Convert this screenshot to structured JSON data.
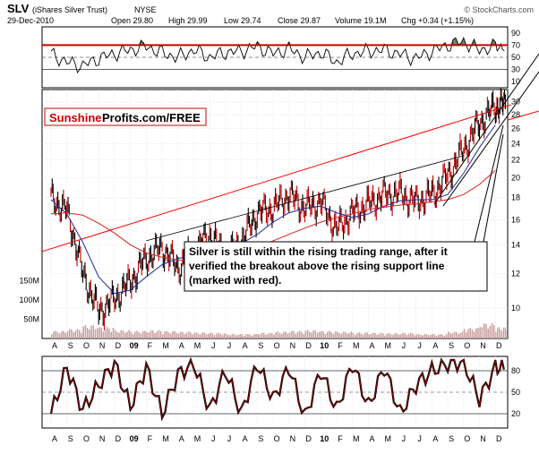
{
  "colors": {
    "price": "#000000",
    "ma50": "#1f2f9f",
    "ma200": "#d81f1f",
    "trendline": "#ff0000",
    "channel": "#000000",
    "rsi_line": "#000000",
    "rsi_overbought": "#cc0000",
    "rsi_fill": "#3c7a3c",
    "stoch_line": "#8b0000",
    "volume": "#c9a0a0",
    "grid": "#cccccc",
    "brand_red": "#cc0000"
  },
  "header": {
    "symbol": "SLV",
    "name": "(iShares Silver Trust)",
    "exchange": "NYSE",
    "copyright": "© StockCharts.com",
    "date": "29-Dec-2010",
    "open": "Open 29.80",
    "high": "High 29.99",
    "low": "Low 29.74",
    "close": "Close 29.87",
    "volume": "Volume 19.1M",
    "change": "Chg +0.34 (+1.15%)"
  },
  "watermark": {
    "part1": "Sunshine",
    "part2": "Profits.com/FREE"
  },
  "annotation": {
    "lines": [
      "Silver is still within the rising trading range, after it",
      "verified the breakout above the rising support line",
      "(marked with red)."
    ]
  },
  "chart_data": [
    {
      "type": "line",
      "panel": "rsi",
      "y_ticks": [
        "90",
        "70",
        "50",
        "30",
        "10"
      ],
      "ylim": [
        0,
        100
      ],
      "overbought": 70,
      "oversold": 30,
      "x": [
        "2008-08",
        "2008-09",
        "2008-10",
        "2008-11",
        "2008-12",
        "2009-01",
        "2009-02",
        "2009-03",
        "2009-04",
        "2009-05",
        "2009-06",
        "2009-07",
        "2009-08",
        "2009-09",
        "2009-10",
        "2009-11",
        "2009-12",
        "2010-01",
        "2010-02",
        "2010-03",
        "2010-04",
        "2010-05",
        "2010-06",
        "2010-07",
        "2010-08",
        "2010-09",
        "2010-10",
        "2010-11",
        "2010-12"
      ],
      "values": [
        55,
        42,
        36,
        48,
        56,
        62,
        68,
        57,
        50,
        62,
        50,
        58,
        60,
        68,
        56,
        64,
        50,
        58,
        42,
        56,
        60,
        62,
        55,
        48,
        60,
        70,
        76,
        62,
        68
      ]
    },
    {
      "type": "line",
      "panel": "price",
      "y_scale": "log",
      "y_ticks": [
        "30",
        "28",
        "26",
        "24",
        "22",
        "20",
        "18",
        "16",
        "14",
        "12",
        "10"
      ],
      "ylim": [
        8.5,
        32
      ],
      "x_labels": [
        "A",
        "S",
        "O",
        "N",
        "D",
        "09",
        "F",
        "M",
        "A",
        "M",
        "J",
        "J",
        "A",
        "S",
        "O",
        "N",
        "D",
        "10",
        "F",
        "M",
        "A",
        "M",
        "J",
        "J",
        "A",
        "S",
        "O",
        "N",
        "D"
      ],
      "x": [
        "2008-08",
        "2008-09",
        "2008-10",
        "2008-11",
        "2008-12",
        "2009-01",
        "2009-02",
        "2009-03",
        "2009-04",
        "2009-05",
        "2009-06",
        "2009-07",
        "2009-08",
        "2009-09",
        "2009-10",
        "2009-11",
        "2009-12",
        "2010-01",
        "2010-02",
        "2010-03",
        "2010-04",
        "2010-05",
        "2010-06",
        "2010-07",
        "2010-08",
        "2010-09",
        "2010-10",
        "2010-11",
        "2010-12"
      ],
      "series": [
        {
          "values": [
            18.0,
            16.8,
            12.0,
            9.8,
            10.5,
            11.5,
            13.0,
            13.8,
            12.4,
            13.5,
            14.8,
            13.2,
            14.2,
            16.6,
            17.0,
            18.3,
            17.0,
            17.6,
            15.2,
            16.6,
            17.4,
            18.3,
            18.4,
            17.6,
            18.3,
            20.2,
            23.2,
            26.8,
            29.2
          ]
        },
        {
          "name": "MA(50)",
          "values": [
            17.8,
            16.5,
            14.2,
            11.8,
            10.8,
            11.0,
            11.8,
            12.6,
            13.0,
            13.3,
            13.8,
            14.0,
            14.1,
            14.8,
            15.8,
            16.6,
            17.0,
            17.2,
            16.6,
            16.2,
            16.5,
            17.2,
            17.7,
            17.8,
            17.8,
            18.3,
            20.5,
            23.5,
            26.5
          ]
        },
        {
          "name": "MA(200)",
          "values": [
            16.5,
            16.6,
            16.4,
            15.7,
            14.9,
            14.0,
            13.4,
            13.1,
            12.9,
            12.8,
            12.9,
            13.1,
            13.4,
            13.8,
            14.3,
            14.8,
            15.3,
            15.8,
            16.2,
            16.5,
            16.9,
            17.1,
            17.3,
            17.4,
            17.6,
            17.8,
            18.3,
            19.3,
            20.8
          ]
        }
      ],
      "trendlines": [
        {
          "color": "red",
          "from": [
            "2008-02",
            11.7
          ],
          "to": [
            "2011-01",
            29.5
          ]
        },
        {
          "color": "black",
          "from": [
            "2009-02",
            14.3
          ],
          "to": [
            "2010-10",
            22.5
          ]
        }
      ]
    },
    {
      "type": "bar",
      "panel": "volume",
      "y_ticks": [
        "150M",
        "100M",
        "50M"
      ],
      "ylim": [
        0,
        210
      ],
      "unit": "M",
      "x": [
        "2008-08",
        "2008-09",
        "2008-10",
        "2008-11",
        "2008-12",
        "2009-01",
        "2009-02",
        "2009-03",
        "2009-04",
        "2009-05",
        "2009-06",
        "2009-07",
        "2009-08",
        "2009-09",
        "2009-10",
        "2009-11",
        "2009-12",
        "2010-01",
        "2010-02",
        "2010-03",
        "2010-04",
        "2010-05",
        "2010-06",
        "2010-07",
        "2010-08",
        "2010-09",
        "2010-10",
        "2010-11",
        "2010-12"
      ],
      "values": [
        20,
        25,
        35,
        30,
        22,
        20,
        22,
        20,
        18,
        16,
        15,
        12,
        12,
        15,
        18,
        20,
        22,
        20,
        18,
        16,
        15,
        14,
        15,
        12,
        12,
        18,
        28,
        40,
        30
      ]
    },
    {
      "type": "line",
      "panel": "stochastic",
      "y_ticks": [
        "80",
        "50",
        "20"
      ],
      "ylim": [
        0,
        100
      ],
      "x_labels": [
        "A",
        "S",
        "O",
        "N",
        "D",
        "09",
        "F",
        "M",
        "A",
        "M",
        "J",
        "J",
        "A",
        "S",
        "O",
        "N",
        "D",
        "10",
        "F",
        "M",
        "A",
        "M",
        "J",
        "J",
        "A",
        "S",
        "O",
        "N",
        "D"
      ],
      "x": [
        "2008-08",
        "2008-09",
        "2008-10",
        "2008-11",
        "2008-12",
        "2009-01",
        "2009-02",
        "2009-03",
        "2009-04",
        "2009-05",
        "2009-06",
        "2009-07",
        "2009-08",
        "2009-09",
        "2009-10",
        "2009-11",
        "2009-12",
        "2010-01",
        "2010-02",
        "2010-03",
        "2010-04",
        "2010-05",
        "2010-06",
        "2010-07",
        "2010-08",
        "2010-09",
        "2010-10",
        "2010-11",
        "2010-12"
      ],
      "values": [
        20,
        85,
        25,
        60,
        90,
        30,
        85,
        20,
        75,
        90,
        25,
        80,
        20,
        90,
        40,
        85,
        15,
        80,
        25,
        90,
        30,
        85,
        20,
        60,
        80,
        90,
        92,
        40,
        85
      ]
    }
  ]
}
